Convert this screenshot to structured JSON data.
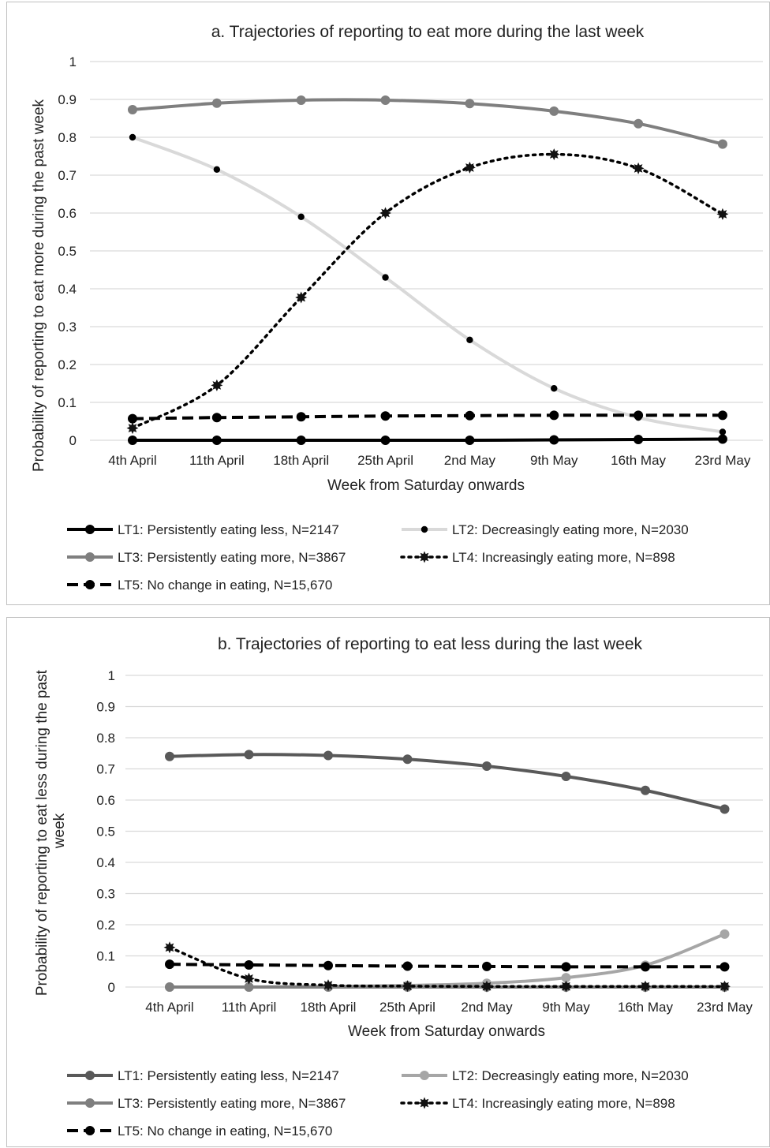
{
  "chart_data": [
    {
      "type": "line",
      "title": "a. Trajectories of reporting to eat more during the last week",
      "xlabel": "Week from Saturday onwards",
      "ylabel": "Probability of reporting to eat more during the past week",
      "ylim": [
        0,
        1
      ],
      "yticks": [
        "0",
        "0.1",
        "0.2",
        "0.3",
        "0.4",
        "0.5",
        "0.6",
        "0.7",
        "0.8",
        "0.9",
        "1"
      ],
      "categories": [
        "4th April",
        "11th April",
        "18th April",
        "25th April",
        "2nd May",
        "9th May",
        "16th May",
        "23rd May"
      ],
      "grid": true,
      "legend_position": "bottom",
      "series": [
        {
          "name": "LT1: Persistently eating less, N=2147",
          "values": [
            0.0,
            0.0,
            0.0,
            0.0,
            0.0,
            0.001,
            0.002,
            0.003
          ],
          "color": "#000000",
          "dash": "solid",
          "marker": "circle"
        },
        {
          "name": "LT2: Decreasingly eating more, N=2030",
          "values": [
            0.8,
            0.715,
            0.59,
            0.43,
            0.265,
            0.137,
            0.06,
            0.022
          ],
          "color": "#d9d9d9",
          "dash": "solid",
          "marker": "small-dot"
        },
        {
          "name": "LT3: Persistently eating more, N=3867",
          "values": [
            0.873,
            0.89,
            0.898,
            0.898,
            0.889,
            0.869,
            0.836,
            0.782
          ],
          "color": "#7f7f7f",
          "dash": "solid",
          "marker": "circle"
        },
        {
          "name": "LT4: Increasingly eating more, N=898",
          "values": [
            0.032,
            0.145,
            0.377,
            0.6,
            0.72,
            0.755,
            0.718,
            0.597
          ],
          "color": "#000000",
          "dash": "dotted",
          "marker": "star"
        },
        {
          "name": "LT5: No change in eating, N=15,670",
          "values": [
            0.057,
            0.06,
            0.062,
            0.064,
            0.065,
            0.066,
            0.066,
            0.066
          ],
          "color": "#000000",
          "dash": "dashed",
          "marker": "circle"
        }
      ]
    },
    {
      "type": "line",
      "title": "b. Trajectories of reporting to eat less during the last week",
      "xlabel": "Week from Saturday onwards",
      "ylabel": "Probability of reporting to eat less during the past week",
      "ylim": [
        0,
        1
      ],
      "yticks": [
        "0",
        "0.1",
        "0.2",
        "0.3",
        "0.4",
        "0.5",
        "0.6",
        "0.7",
        "0.8",
        "0.9",
        "1"
      ],
      "categories": [
        "4th April",
        "11th April",
        "18th April",
        "25th April",
        "2nd May",
        "9th May",
        "16th May",
        "23rd May"
      ],
      "grid": true,
      "legend_position": "bottom",
      "series": [
        {
          "name": "LT1: Persistently eating less, N=2147",
          "values": [
            0.74,
            0.746,
            0.743,
            0.731,
            0.709,
            0.676,
            0.631,
            0.571
          ],
          "color": "#595959",
          "dash": "solid",
          "marker": "circle"
        },
        {
          "name": "LT2: Decreasingly eating more, N=2030",
          "values": [
            0.0,
            0.0,
            0.002,
            0.005,
            0.012,
            0.03,
            0.07,
            0.17
          ],
          "color": "#a6a6a6",
          "dash": "solid",
          "marker": "circle"
        },
        {
          "name": "LT3: Persistently eating more, N=3867",
          "values": [
            0.0,
            0.0,
            0.0,
            0.0,
            0.0,
            0.0,
            0.0,
            0.0
          ],
          "color": "#7f7f7f",
          "dash": "solid",
          "marker": "circle"
        },
        {
          "name": "LT4: Increasingly eating more, N=898",
          "values": [
            0.127,
            0.027,
            0.006,
            0.003,
            0.002,
            0.002,
            0.002,
            0.002
          ],
          "color": "#000000",
          "dash": "dotted",
          "marker": "star"
        },
        {
          "name": "LT5: No change in eating, N=15,670",
          "values": [
            0.073,
            0.071,
            0.069,
            0.067,
            0.066,
            0.065,
            0.065,
            0.065
          ],
          "color": "#000000",
          "dash": "dashed",
          "marker": "circle"
        }
      ]
    }
  ]
}
